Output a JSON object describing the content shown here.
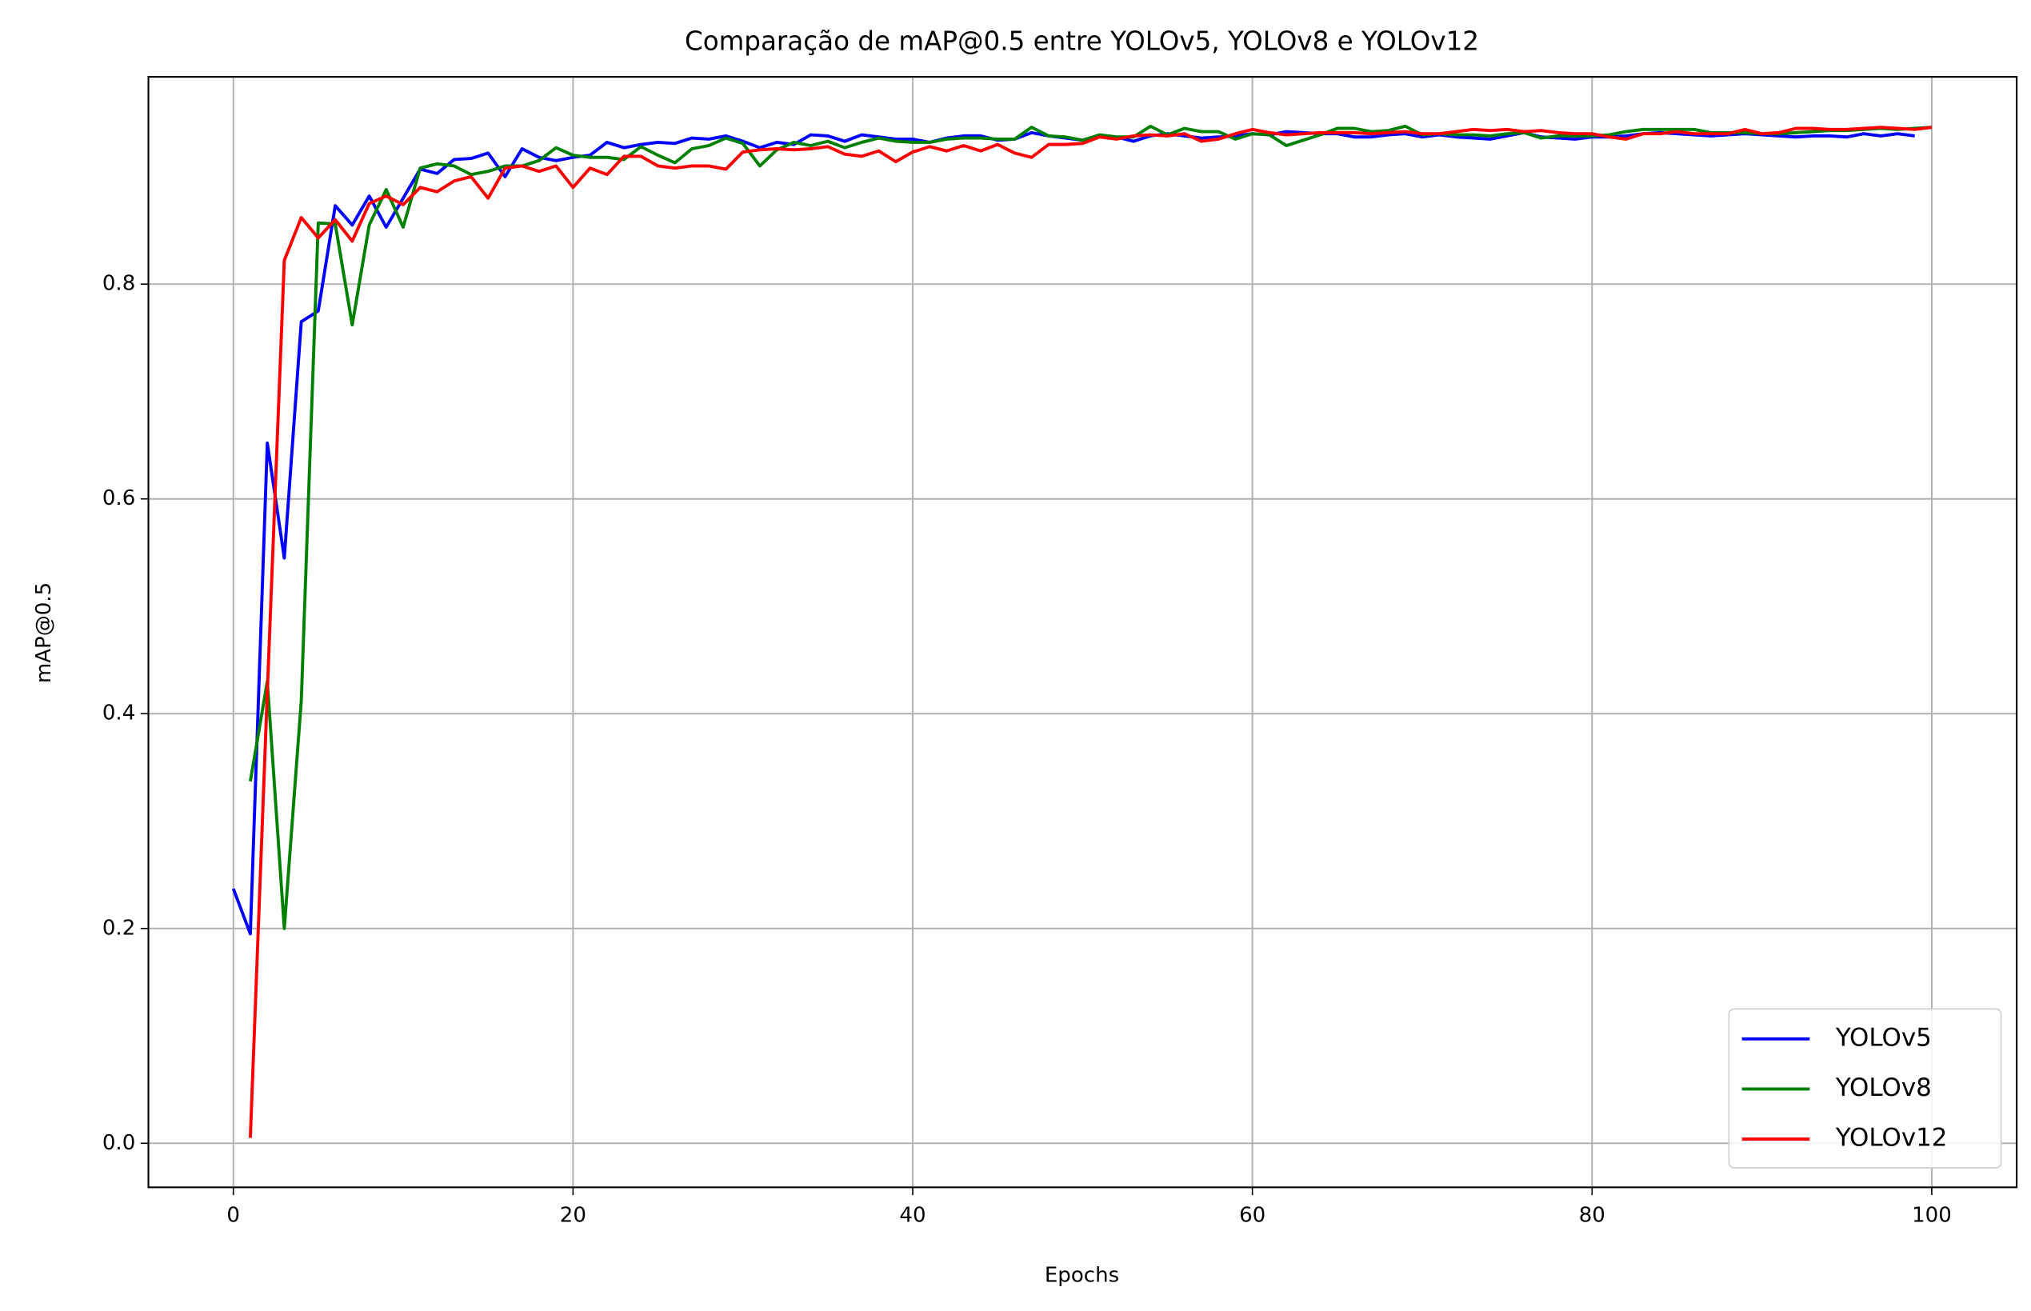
{
  "chart_data": {
    "type": "line",
    "title": "Comparação de mAP@0.5 entre YOLOv5, YOLOv8 e YOLOv12",
    "x_label": "Epochs",
    "y_label": "mAP@0.5",
    "x": [
      0,
      1,
      2,
      3,
      4,
      5,
      6,
      7,
      8,
      9,
      10,
      11,
      12,
      13,
      14,
      15,
      16,
      17,
      18,
      19,
      20,
      21,
      22,
      23,
      24,
      25,
      26,
      27,
      28,
      29,
      30,
      31,
      32,
      33,
      34,
      35,
      36,
      37,
      38,
      39,
      40,
      41,
      42,
      43,
      44,
      45,
      46,
      47,
      48,
      49,
      50,
      51,
      52,
      53,
      54,
      55,
      56,
      57,
      58,
      59,
      60,
      61,
      62,
      63,
      64,
      65,
      66,
      67,
      68,
      69,
      70,
      71,
      72,
      73,
      74,
      75,
      76,
      77,
      78,
      79,
      80,
      81,
      82,
      83,
      84,
      85,
      86,
      87,
      88,
      89,
      90,
      91,
      92,
      93,
      94,
      95,
      96,
      97,
      98,
      99,
      100
    ],
    "series": [
      {
        "name": "YOLOv5",
        "color": "#0000ff",
        "values": [
          0.237,
          0.195,
          0.652,
          0.545,
          0.765,
          0.775,
          0.873,
          0.855,
          0.882,
          0.853,
          0.88,
          0.907,
          0.903,
          0.916,
          0.917,
          0.922,
          0.9,
          0.926,
          0.918,
          0.915,
          0.918,
          0.92,
          0.932,
          0.927,
          0.93,
          0.932,
          0.931,
          0.936,
          0.935,
          0.938,
          0.933,
          0.927,
          0.932,
          0.93,
          0.939,
          0.938,
          0.933,
          0.939,
          0.937,
          0.935,
          0.935,
          0.932,
          0.936,
          0.938,
          0.938,
          0.934,
          0.935,
          0.941,
          0.938,
          0.936,
          0.934,
          0.938,
          0.937,
          0.933,
          0.938,
          0.94,
          0.938,
          0.936,
          0.937,
          0.938,
          0.94,
          0.939,
          0.942,
          0.941,
          0.94,
          0.94,
          0.937,
          0.937,
          0.939,
          0.94,
          0.937,
          0.939,
          0.937,
          0.936,
          0.935,
          0.938,
          0.941,
          0.937,
          0.936,
          0.935,
          0.937,
          0.937,
          0.938,
          0.94,
          0.941,
          0.94,
          0.939,
          0.938,
          0.939,
          0.94,
          0.939,
          0.938,
          0.937,
          0.938,
          0.938,
          0.937,
          0.94,
          0.938,
          0.94,
          0.938,
          null
        ]
      },
      {
        "name": "YOLOv8",
        "color": "#008000",
        "values": [
          null,
          0.337,
          0.43,
          0.2,
          0.412,
          0.857,
          0.856,
          0.762,
          0.855,
          0.888,
          0.853,
          0.908,
          0.912,
          0.91,
          0.902,
          0.905,
          0.91,
          0.91,
          0.915,
          0.927,
          0.92,
          0.918,
          0.918,
          0.916,
          0.928,
          0.92,
          0.913,
          0.926,
          0.929,
          0.936,
          0.931,
          0.91,
          0.925,
          0.932,
          0.929,
          0.933,
          0.927,
          0.932,
          0.936,
          0.933,
          0.932,
          0.932,
          0.935,
          0.936,
          0.936,
          0.935,
          0.935,
          0.946,
          0.938,
          0.937,
          0.934,
          0.939,
          0.937,
          0.937,
          0.947,
          0.939,
          0.945,
          0.942,
          0.942,
          0.935,
          0.94,
          0.939,
          0.929,
          0.934,
          0.939,
          0.945,
          0.945,
          0.942,
          0.943,
          0.947,
          0.939,
          0.94,
          0.939,
          0.939,
          0.938,
          0.94,
          0.941,
          0.936,
          0.938,
          0.938,
          0.938,
          0.939,
          0.942,
          0.944,
          0.944,
          0.944,
          0.944,
          0.941,
          0.941,
          0.941,
          0.94,
          0.94,
          0.941,
          0.942,
          0.943,
          0.943,
          0.944,
          0.945,
          0.944,
          0.945,
          0.946
        ]
      },
      {
        "name": "YOLOv12",
        "color": "#ff0000",
        "values": [
          null,
          0.005,
          0.42,
          0.822,
          0.862,
          0.843,
          0.86,
          0.84,
          0.875,
          0.882,
          0.874,
          0.89,
          0.886,
          0.896,
          0.9,
          0.88,
          0.908,
          0.91,
          0.905,
          0.91,
          0.89,
          0.908,
          0.902,
          0.919,
          0.919,
          0.91,
          0.908,
          0.91,
          0.91,
          0.907,
          0.923,
          0.925,
          0.926,
          0.925,
          0.926,
          0.928,
          0.921,
          0.919,
          0.924,
          0.914,
          0.923,
          0.928,
          0.924,
          0.929,
          0.924,
          0.93,
          0.922,
          0.918,
          0.93,
          0.93,
          0.931,
          0.937,
          0.935,
          0.938,
          0.939,
          0.938,
          0.94,
          0.933,
          0.935,
          0.94,
          0.944,
          0.941,
          0.939,
          0.94,
          0.941,
          0.941,
          0.941,
          0.94,
          0.941,
          0.942,
          0.94,
          0.94,
          0.942,
          0.944,
          0.943,
          0.944,
          0.942,
          0.943,
          0.941,
          0.94,
          0.94,
          0.937,
          0.935,
          0.94,
          0.94,
          0.942,
          0.94,
          0.94,
          0.94,
          0.944,
          0.94,
          0.941,
          0.945,
          0.945,
          0.944,
          0.944,
          0.945,
          0.946,
          0.945,
          0.944,
          0.946
        ]
      }
    ],
    "xlim": [
      -5,
      105
    ],
    "ylim": [
      -0.041,
      0.993
    ],
    "xticks": [
      0,
      20,
      40,
      60,
      80,
      100
    ],
    "yticks": [
      {
        "value": 0.0,
        "label": "0.0"
      },
      0.2,
      0.4,
      0.6,
      0.8
    ],
    "grid": true,
    "legend": "lower right"
  }
}
